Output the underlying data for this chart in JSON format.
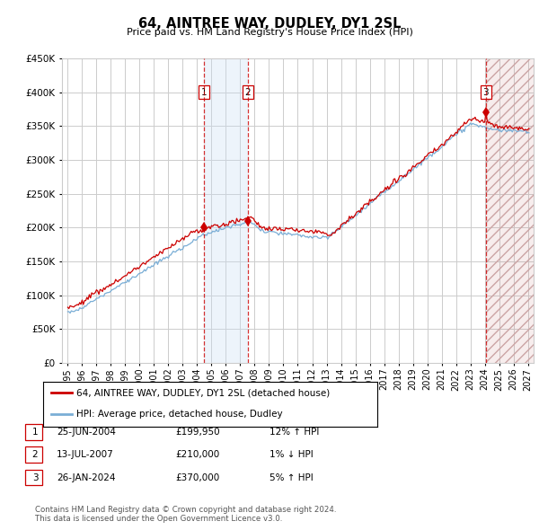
{
  "title": "64, AINTREE WAY, DUDLEY, DY1 2SL",
  "subtitle": "Price paid vs. HM Land Registry's House Price Index (HPI)",
  "legend_line1": "64, AINTREE WAY, DUDLEY, DY1 2SL (detached house)",
  "legend_line2": "HPI: Average price, detached house, Dudley",
  "footer1": "Contains HM Land Registry data © Crown copyright and database right 2024.",
  "footer2": "This data is licensed under the Open Government Licence v3.0.",
  "sales": [
    {
      "num": 1,
      "date": "25-JUN-2004",
      "price": 199950,
      "pct": "12%",
      "dir": "↑",
      "year": 2004.47
    },
    {
      "num": 2,
      "date": "13-JUL-2007",
      "price": 210000,
      "pct": "1%",
      "dir": "↓",
      "year": 2007.53
    },
    {
      "num": 3,
      "date": "26-JAN-2024",
      "price": 370000,
      "pct": "5%",
      "dir": "↑",
      "year": 2024.07
    }
  ],
  "ylim": [
    0,
    450000
  ],
  "yticks": [
    0,
    50000,
    100000,
    150000,
    200000,
    250000,
    300000,
    350000,
    400000,
    450000
  ],
  "xlim_start": 1994.6,
  "xlim_end": 2027.4,
  "line_color_property": "#cc0000",
  "line_color_hpi": "#7aaed6",
  "background_color": "#ffffff",
  "grid_color": "#cccccc",
  "shade_color": "#cce0f5",
  "hatch_color": "#ddbbbb"
}
